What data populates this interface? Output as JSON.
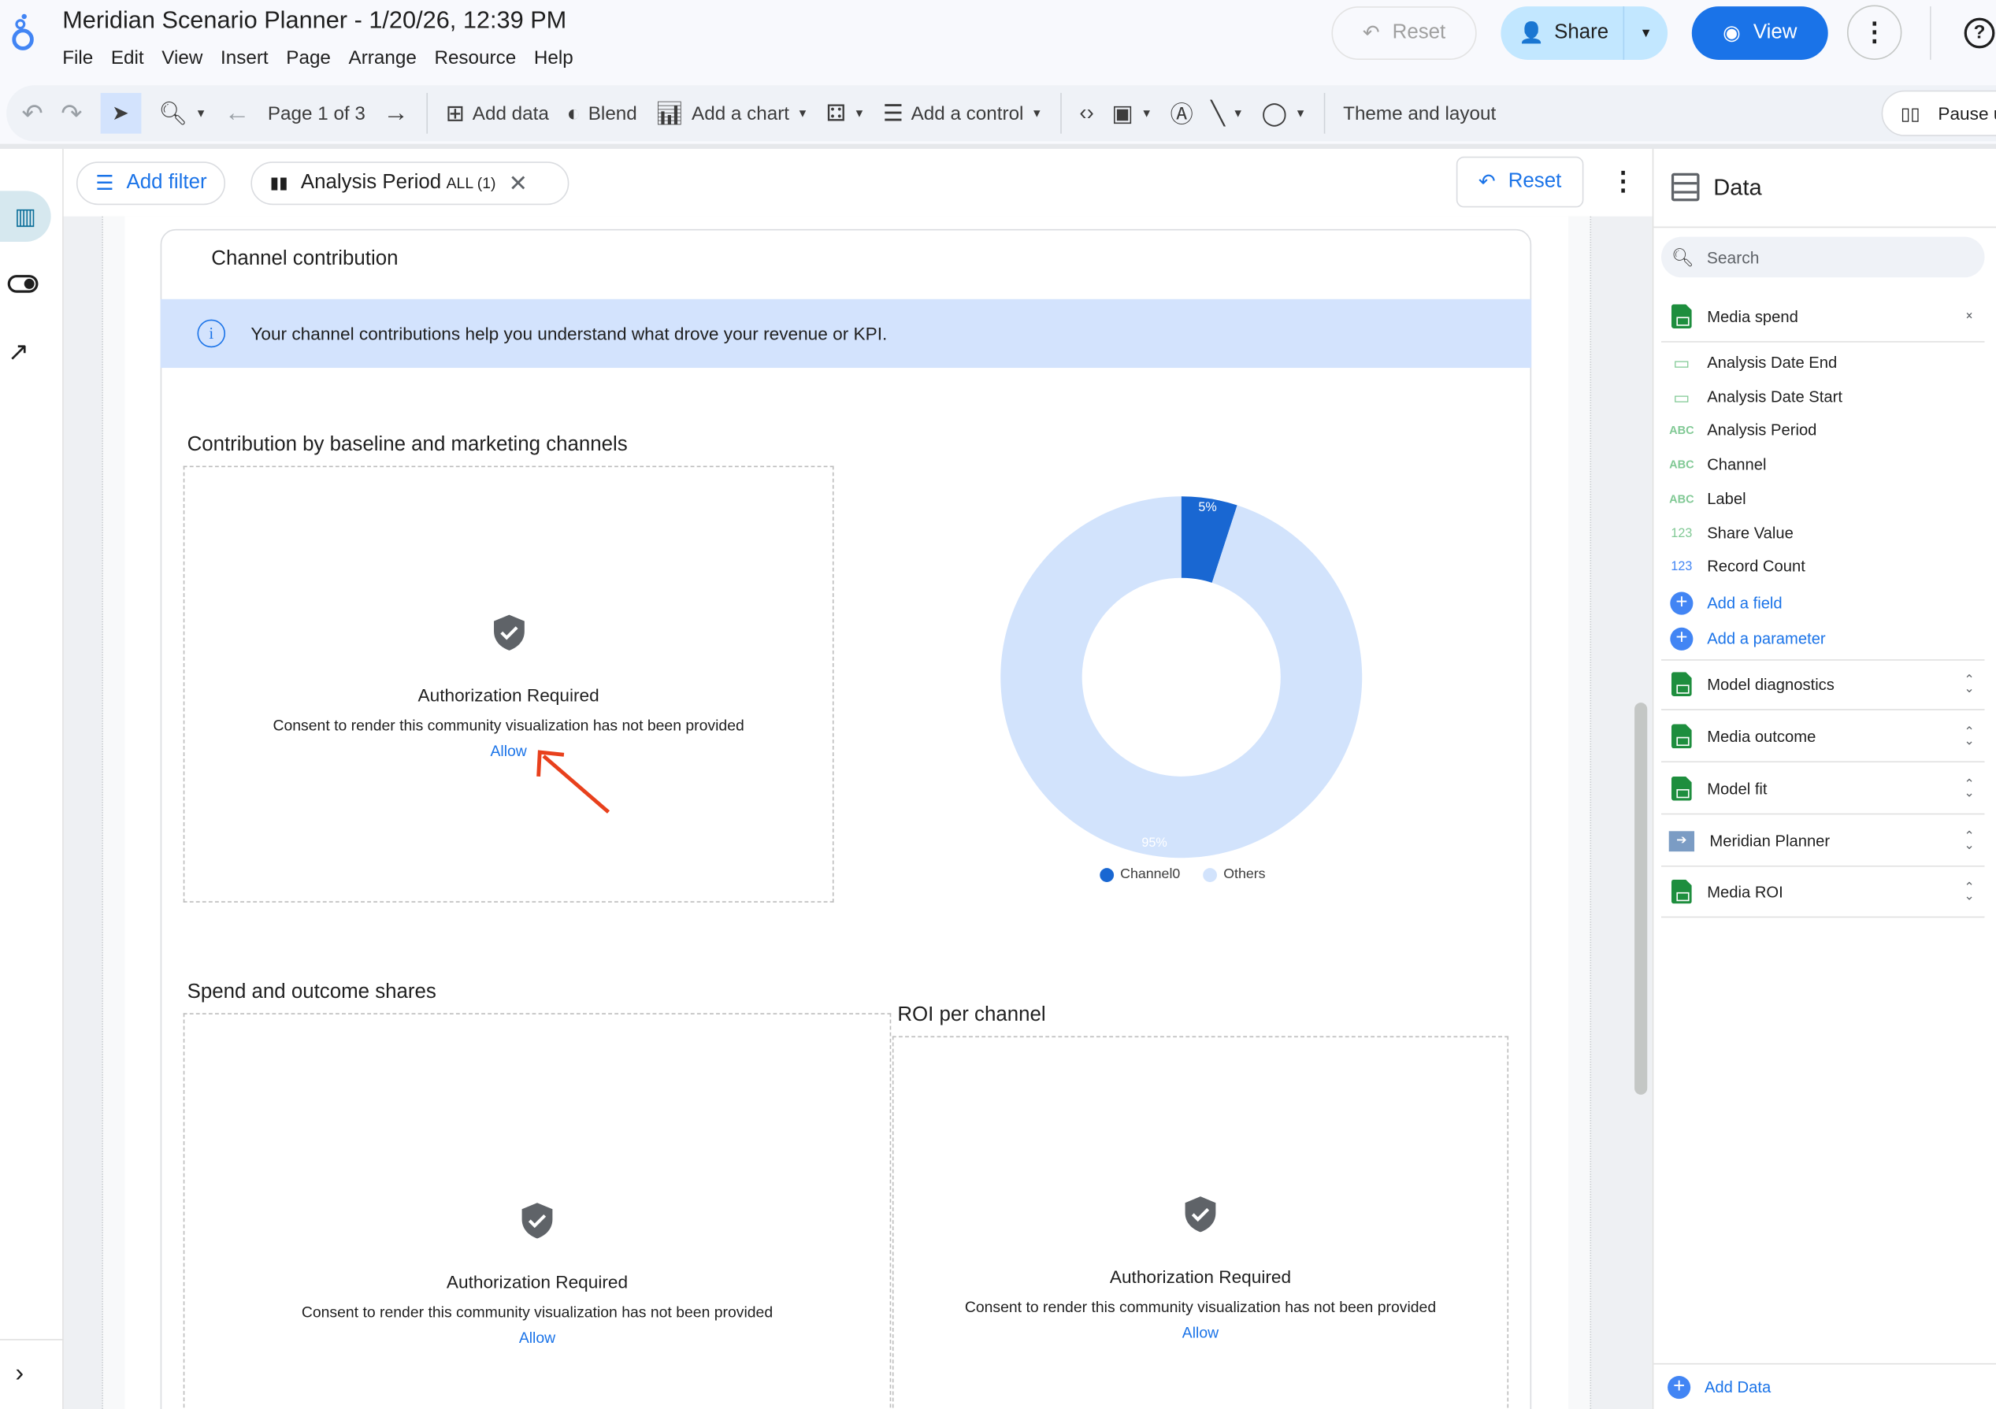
{
  "app": {
    "title": "Meridian Scenario Planner - 1/20/26, 12:39 PM",
    "menu": [
      "File",
      "Edit",
      "View",
      "Insert",
      "Page",
      "Arrange",
      "Resource",
      "Help"
    ],
    "reset_label": "Reset",
    "share_label": "Share",
    "view_label": "View"
  },
  "toolbar": {
    "page_label": "Page 1 of 3",
    "add_data": "Add data",
    "blend": "Blend",
    "add_chart": "Add a chart",
    "add_control": "Add a control",
    "theme_layout": "Theme and layout",
    "pause": "Pause u"
  },
  "filterbar": {
    "add_filter": "Add filter",
    "chip_label": "Analysis Period",
    "chip_value": "ALL (1)",
    "reset_label": "Reset"
  },
  "report": {
    "card_title": "Channel contribution",
    "info_text": "Your channel contributions help you understand what drove your revenue or KPI.",
    "section1_title": "Contribution by baseline and marketing channels",
    "section2_title": "Spend and outcome shares",
    "section3_title": "ROI per channel",
    "auth": {
      "heading": "Authorization Required",
      "consent": "Consent to render this community visualization has not been provided",
      "allow": "Allow"
    }
  },
  "chart_data": {
    "type": "pie",
    "donut": true,
    "slices": [
      {
        "name": "Channel0",
        "value": 5,
        "label": "5%",
        "color": "#1967d2"
      },
      {
        "name": "Others",
        "value": 95,
        "label": "95%",
        "color": "#d2e3fc"
      }
    ],
    "legend": "bottom"
  },
  "panel": {
    "title": "Data",
    "search_placeholder": "Search",
    "sources": [
      {
        "name": "Media spend",
        "expanded": true
      },
      {
        "name": "Model diagnostics"
      },
      {
        "name": "Media outcome"
      },
      {
        "name": "Model fit"
      },
      {
        "name": "Meridian Planner"
      },
      {
        "name": "Media ROI"
      }
    ],
    "fields": [
      {
        "type": "date",
        "label": "Analysis Date End"
      },
      {
        "type": "date",
        "label": "Analysis Date Start"
      },
      {
        "type": "ABC",
        "label": "Analysis Period"
      },
      {
        "type": "ABC",
        "label": "Channel"
      },
      {
        "type": "ABC",
        "label": "Label"
      },
      {
        "type": "123",
        "label": "Share Value"
      },
      {
        "type": "123",
        "label": "Record Count"
      }
    ],
    "add_field": "Add a field",
    "add_parameter": "Add a parameter",
    "add_data": "Add Data"
  },
  "colors": {
    "accent": "#1a73e8",
    "share_bg": "#c2e7ff",
    "info_bg": "#d3e3fd",
    "arrow": "#e8401c"
  }
}
